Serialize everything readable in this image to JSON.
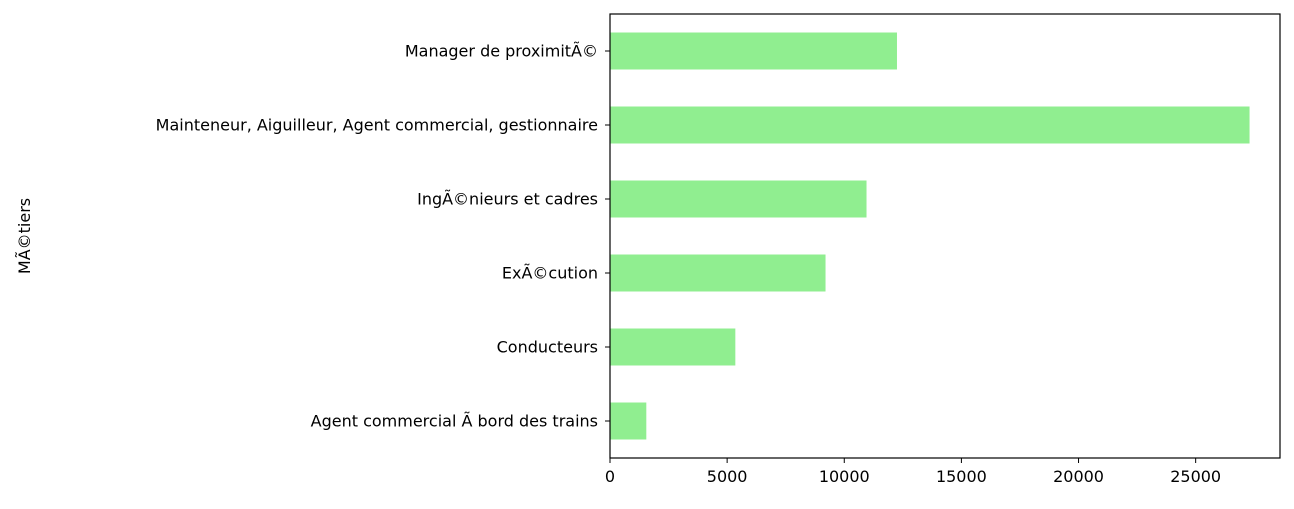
{
  "chart_data": {
    "type": "bar",
    "orientation": "horizontal",
    "title": "",
    "xlabel": "",
    "ylabel": "MÃ©tiers",
    "categories": [
      "Agent commercial Ã  bord des trains",
      "Conducteurs",
      "ExÃ©cution",
      "IngÃ©nieurs et cadres",
      "Mainteneur, Aiguilleur, Agent commercial, gestionnaire",
      "Manager de proximitÃ©"
    ],
    "values": [
      1550,
      5350,
      9200,
      10950,
      27300,
      12250
    ],
    "xlim": [
      0,
      28600
    ],
    "xticks": [
      0,
      5000,
      10000,
      15000,
      20000,
      25000
    ],
    "xtick_labels": [
      "0",
      "5000",
      "10000",
      "15000",
      "20000",
      "25000"
    ],
    "bar_color": "#90ee90",
    "grid": false,
    "legend": "none"
  }
}
